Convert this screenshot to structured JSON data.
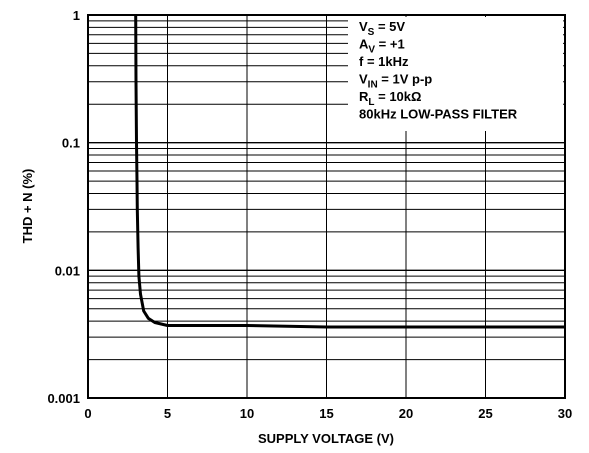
{
  "chart_data": {
    "type": "line",
    "xlabel": "SUPPLY VOLTAGE (V)",
    "ylabel": "THD + N (%)",
    "xlim": [
      0,
      30
    ],
    "ylim": [
      0.001,
      1
    ],
    "y_scale": "log",
    "grid": true,
    "x_ticks": [
      "0",
      "5",
      "10",
      "15",
      "20",
      "25",
      "30"
    ],
    "y_ticks": [
      "0.001",
      "0.01",
      "0.1",
      "1"
    ],
    "annotations": [
      {
        "main": "V",
        "sub": "S",
        "rest": " = 5V"
      },
      {
        "main": "A",
        "sub": "V",
        "rest": " = +1"
      },
      {
        "main": "f = 1kHz",
        "sub": "",
        "rest": ""
      },
      {
        "main": "V",
        "sub": "IN",
        "rest": " = 1V p-p"
      },
      {
        "main": "R",
        "sub": "L",
        "rest": " = 10kΩ"
      },
      {
        "main": "80kHz LOW-PASS FILTER",
        "sub": "",
        "rest": ""
      }
    ],
    "series": [
      {
        "x": [
          3.0,
          3.02,
          3.05,
          3.08,
          3.1,
          3.15,
          3.2,
          3.3,
          3.5,
          3.8,
          4.2,
          5.0,
          7.0,
          10.0,
          15.0,
          20.0,
          25.0,
          30.0
        ],
        "y": [
          1.0,
          0.3,
          0.1,
          0.05,
          0.03,
          0.015,
          0.009,
          0.0065,
          0.0048,
          0.0042,
          0.0039,
          0.0037,
          0.0037,
          0.0037,
          0.0036,
          0.0036,
          0.0036,
          0.0036
        ]
      }
    ]
  }
}
